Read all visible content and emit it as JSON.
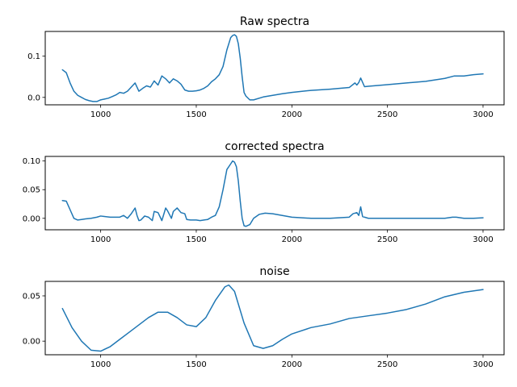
{
  "chart_data": [
    {
      "type": "line",
      "title": "Raw spectra",
      "xlim": [
        710,
        3110
      ],
      "ylim": [
        -0.018,
        0.16
      ],
      "xticks": [
        1000,
        1500,
        2000,
        2500,
        3000
      ],
      "yticks": [
        0.0,
        0.1
      ],
      "ytick_labels": [
        "0.0",
        "0.1"
      ],
      "grid": false,
      "color": "#1f77b4",
      "series": [
        {
          "x": [
            800,
            820,
            840,
            860,
            880,
            900,
            920,
            940,
            960,
            980,
            1000,
            1020,
            1040,
            1060,
            1080,
            1100,
            1120,
            1140,
            1160,
            1180,
            1190,
            1200,
            1220,
            1240,
            1260,
            1280,
            1300,
            1320,
            1340,
            1360,
            1380,
            1400,
            1420,
            1440,
            1460,
            1480,
            1500,
            1520,
            1540,
            1560,
            1580,
            1600,
            1620,
            1640,
            1660,
            1680,
            1690,
            1700,
            1710,
            1720,
            1730,
            1740,
            1750,
            1760,
            1780,
            1800,
            1850,
            1900,
            1950,
            2000,
            2100,
            2200,
            2300,
            2330,
            2340,
            2350,
            2360,
            2380,
            2400,
            2500,
            2600,
            2700,
            2800,
            2850,
            2900,
            2950,
            3000
          ],
          "y": [
            0.067,
            0.06,
            0.035,
            0.015,
            0.005,
            0.0,
            -0.005,
            -0.008,
            -0.01,
            -0.01,
            -0.006,
            -0.004,
            -0.002,
            0.002,
            0.006,
            0.012,
            0.01,
            0.015,
            0.025,
            0.035,
            0.025,
            0.015,
            0.022,
            0.028,
            0.025,
            0.04,
            0.03,
            0.052,
            0.045,
            0.035,
            0.045,
            0.04,
            0.032,
            0.018,
            0.015,
            0.015,
            0.016,
            0.018,
            0.022,
            0.028,
            0.038,
            0.045,
            0.055,
            0.075,
            0.115,
            0.145,
            0.15,
            0.152,
            0.148,
            0.13,
            0.095,
            0.05,
            0.012,
            0.003,
            -0.006,
            -0.006,
            0.001,
            0.005,
            0.009,
            0.012,
            0.017,
            0.02,
            0.024,
            0.035,
            0.03,
            0.036,
            0.047,
            0.026,
            0.027,
            0.031,
            0.035,
            0.039,
            0.046,
            0.052,
            0.052,
            0.055,
            0.057
          ]
        }
      ]
    },
    {
      "type": "line",
      "title": "corrected spectra",
      "xlim": [
        710,
        3110
      ],
      "ylim": [
        -0.02,
        0.108
      ],
      "xticks": [
        1000,
        1500,
        2000,
        2500,
        3000
      ],
      "yticks": [
        0.0,
        0.05,
        0.1
      ],
      "ytick_labels": [
        "0.00",
        "0.05",
        "0.10"
      ],
      "grid": false,
      "color": "#1f77b4",
      "series": [
        {
          "x": [
            800,
            820,
            840,
            860,
            880,
            900,
            920,
            950,
            980,
            1000,
            1050,
            1100,
            1120,
            1140,
            1160,
            1180,
            1190,
            1200,
            1210,
            1230,
            1250,
            1270,
            1280,
            1300,
            1320,
            1340,
            1350,
            1370,
            1380,
            1400,
            1420,
            1440,
            1450,
            1470,
            1500,
            1520,
            1540,
            1560,
            1580,
            1600,
            1620,
            1640,
            1660,
            1680,
            1690,
            1700,
            1710,
            1720,
            1730,
            1740,
            1750,
            1760,
            1780,
            1800,
            1830,
            1860,
            1900,
            1950,
            2000,
            2100,
            2200,
            2300,
            2320,
            2340,
            2350,
            2360,
            2370,
            2400,
            2500,
            2600,
            2700,
            2800,
            2840,
            2860,
            2900,
            2950,
            3000
          ],
          "y": [
            0.031,
            0.03,
            0.015,
            0.0,
            -0.003,
            -0.002,
            -0.001,
            0.0,
            0.002,
            0.004,
            0.002,
            0.002,
            0.005,
            0.0,
            0.008,
            0.018,
            0.005,
            -0.004,
            -0.003,
            0.004,
            0.002,
            -0.004,
            0.012,
            0.01,
            -0.004,
            0.018,
            0.013,
            0.0,
            0.012,
            0.018,
            0.01,
            0.008,
            -0.002,
            -0.003,
            -0.003,
            -0.004,
            -0.003,
            -0.002,
            0.002,
            0.005,
            0.02,
            0.05,
            0.085,
            0.095,
            0.1,
            0.098,
            0.09,
            0.065,
            0.03,
            0.0,
            -0.013,
            -0.014,
            -0.011,
            0.0,
            0.007,
            0.009,
            0.008,
            0.005,
            0.002,
            0.0,
            0.0,
            0.002,
            0.008,
            0.01,
            0.005,
            0.02,
            0.003,
            0.0,
            0.0,
            0.0,
            0.0,
            0.0,
            0.002,
            0.002,
            0.0,
            0.0,
            0.001
          ]
        }
      ]
    },
    {
      "type": "line",
      "title": "noise",
      "xlim": [
        710,
        3110
      ],
      "ylim": [
        -0.015,
        0.066
      ],
      "xticks": [
        1000,
        1500,
        2000,
        2500,
        3000
      ],
      "yticks": [
        0.0,
        0.05
      ],
      "ytick_labels": [
        "0.00",
        "0.05"
      ],
      "grid": false,
      "color": "#1f77b4",
      "series": [
        {
          "x": [
            800,
            850,
            900,
            950,
            1000,
            1050,
            1100,
            1150,
            1200,
            1250,
            1300,
            1350,
            1400,
            1450,
            1500,
            1550,
            1600,
            1650,
            1670,
            1700,
            1750,
            1800,
            1850,
            1900,
            1950,
            2000,
            2100,
            2200,
            2300,
            2400,
            2500,
            2600,
            2700,
            2800,
            2900,
            3000
          ],
          "y": [
            0.036,
            0.015,
            0.0,
            -0.01,
            -0.011,
            -0.006,
            0.002,
            0.01,
            0.018,
            0.026,
            0.032,
            0.032,
            0.026,
            0.018,
            0.016,
            0.026,
            0.045,
            0.06,
            0.062,
            0.055,
            0.02,
            -0.005,
            -0.008,
            -0.005,
            0.002,
            0.008,
            0.015,
            0.019,
            0.025,
            0.028,
            0.031,
            0.035,
            0.041,
            0.049,
            0.054,
            0.057
          ]
        }
      ]
    }
  ]
}
